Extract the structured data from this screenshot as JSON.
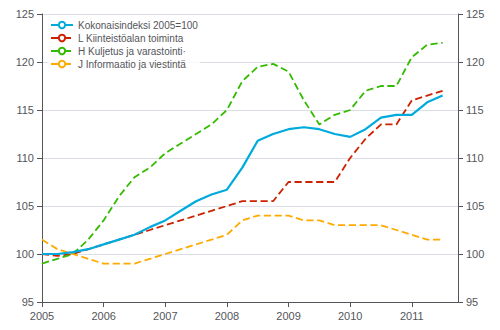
{
  "chart_data": {
    "type": "line",
    "x": [
      2005,
      2005.25,
      2005.5,
      2005.75,
      2006,
      2006.25,
      2006.5,
      2006.75,
      2007,
      2007.25,
      2007.5,
      2007.75,
      2008,
      2008.25,
      2008.5,
      2008.75,
      2009,
      2009.25,
      2009.5,
      2009.75,
      2010,
      2010.25,
      2010.5,
      2010.75,
      2011,
      2011.25,
      2011.5
    ],
    "xlim": [
      2005,
      2011.75
    ],
    "xticks": [
      2005,
      2006,
      2007,
      2008,
      2009,
      2010,
      2011
    ],
    "ylim": [
      95,
      125
    ],
    "yticks": [
      95,
      100,
      105,
      110,
      115,
      120,
      125
    ],
    "y2lim": [
      95,
      125
    ],
    "y2ticks": [
      95,
      100,
      105,
      110,
      115,
      120,
      125
    ],
    "grid": true,
    "legend": "upper left",
    "series": [
      {
        "name": "Kokonaisindeksi 2005=100",
        "color": "#00aadd",
        "line_style": "solid",
        "values": [
          100.0,
          100.0,
          100.2,
          100.5,
          101.0,
          101.5,
          102.0,
          102.8,
          103.5,
          104.5,
          105.5,
          106.2,
          106.7,
          109.0,
          111.8,
          112.5,
          113.0,
          113.2,
          113.0,
          112.5,
          112.2,
          113.0,
          114.2,
          114.5,
          114.5,
          115.8,
          116.5
        ]
      },
      {
        "name": "L Kiinteistöalan toiminta",
        "color": "#cc2200",
        "line_style": "dashed",
        "values": [
          100.0,
          99.8,
          100.0,
          100.5,
          101.0,
          101.5,
          102.0,
          102.5,
          103.0,
          103.5,
          104.0,
          104.5,
          105.0,
          105.5,
          105.5,
          105.5,
          107.5,
          107.5,
          107.5,
          107.5,
          110.0,
          112.0,
          113.5,
          113.5,
          116.0,
          116.5,
          117.0
        ]
      },
      {
        "name": "H Kuljetus ja varastointi·",
        "color": "#33bb00",
        "line_style": "dashed",
        "values": [
          99.0,
          99.5,
          100.0,
          101.5,
          103.5,
          106.0,
          108.0,
          109.0,
          110.5,
          111.5,
          112.5,
          113.5,
          115.0,
          118.0,
          119.5,
          119.8,
          119.0,
          116.0,
          113.5,
          114.5,
          115.0,
          117.0,
          117.5,
          117.5,
          120.5,
          121.8,
          122.0
        ]
      },
      {
        "name": "J Informaatio ja viestintä",
        "color": "#ffaa00",
        "line_style": "dashed",
        "values": [
          101.5,
          100.5,
          100.0,
          99.5,
          99.0,
          99.0,
          99.0,
          99.5,
          100.0,
          100.5,
          101.0,
          101.5,
          102.0,
          103.5,
          104.0,
          104.0,
          104.0,
          103.5,
          103.5,
          103.0,
          103.0,
          103.0,
          103.0,
          102.5,
          102.0,
          101.5,
          101.5
        ]
      }
    ]
  }
}
